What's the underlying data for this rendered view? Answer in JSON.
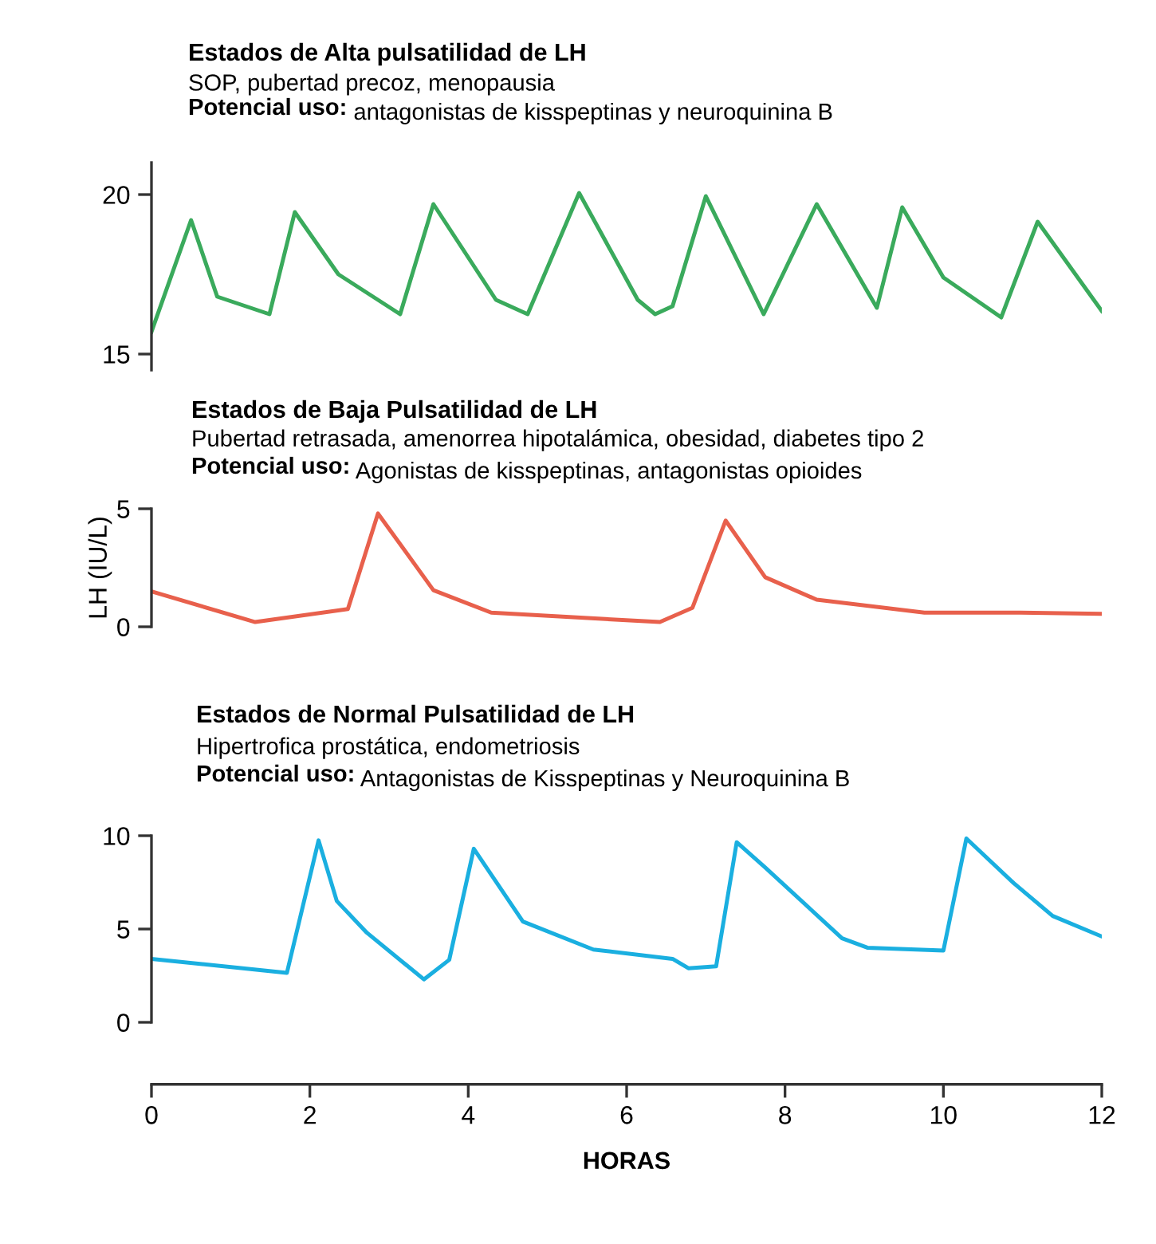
{
  "chart_data": [
    {
      "type": "line",
      "title": "Estados de Alta pulsatilidad de LH",
      "subtitle": "SOP, pubertad precoz, menopausia",
      "annotations": [
        "Potencial uso: antagonistas de kisspeptinas y neuroquinina B"
      ],
      "x": [
        0,
        0.5,
        0.83,
        1.49,
        1.81,
        2.36,
        3.14,
        3.56,
        4.35,
        4.75,
        5.4,
        6.14,
        6.36,
        6.58,
        7.0,
        7.73,
        8.4,
        9.16,
        9.48,
        10.0,
        10.73,
        11.19,
        12
      ],
      "series": [
        {
          "color": "#3aaa5c",
          "values": [
            15.7,
            19.2,
            16.8,
            16.25,
            19.45,
            17.5,
            16.25,
            19.7,
            16.7,
            16.25,
            20.05,
            16.7,
            16.25,
            16.5,
            19.95,
            16.25,
            19.7,
            16.45,
            19.6,
            17.4,
            16.15,
            19.15,
            16.35
          ]
        }
      ],
      "xlim": [
        0,
        12
      ],
      "ylim": [
        14.5,
        21
      ],
      "yticks": [
        15,
        20
      ],
      "tick_labels": "y"
    },
    {
      "type": "line",
      "title": "Estados de Baja Pulsatilidad de LH",
      "subtitle": "Pubertad retrasada, amenorrea hipotalámica, obesidad, diabetes tipo 2",
      "annotations": [
        "Potencial uso: Agonistas de kisspeptinas, antagonistas opioides"
      ],
      "x": [
        0,
        1.31,
        2.48,
        2.86,
        3.56,
        4.29,
        6.42,
        6.83,
        7.25,
        7.75,
        8.4,
        9.76,
        10.97,
        12
      ],
      "series": [
        {
          "color": "#e8604c",
          "values": [
            1.5,
            0.2,
            0.75,
            4.8,
            1.55,
            0.6,
            0.2,
            0.8,
            4.5,
            2.1,
            1.15,
            0.6,
            0.6,
            0.55
          ]
        }
      ],
      "xlim": [
        0,
        12
      ],
      "ylim": [
        0,
        5
      ],
      "yticks": [
        0,
        5
      ],
      "ylabel": "LH (IU/L)",
      "tick_labels": "y"
    },
    {
      "type": "line",
      "title": "Estados de Normal Pulsatilidad de LH",
      "subtitle": "Hipertrofica prostática, endometriosis",
      "annotations": [
        "Potencial uso: Antagonistas de Kisspeptinas y Neuroquinina B"
      ],
      "x": [
        0,
        1.71,
        2.11,
        2.34,
        2.72,
        3.44,
        3.76,
        4.07,
        4.69,
        5.58,
        6.58,
        6.78,
        7.13,
        7.39,
        7.75,
        8.72,
        9.04,
        10.0,
        10.29,
        10.89,
        11.38,
        12
      ],
      "series": [
        {
          "color": "#1aafe0",
          "values": [
            3.4,
            2.65,
            9.75,
            6.5,
            4.8,
            2.3,
            3.35,
            9.3,
            5.4,
            3.9,
            3.4,
            2.9,
            3.0,
            9.65,
            8.3,
            4.5,
            4.0,
            3.85,
            9.85,
            7.45,
            5.7,
            4.6
          ]
        }
      ],
      "xlim": [
        0,
        12
      ],
      "xticks": [
        0,
        2,
        4,
        6,
        8,
        10,
        12
      ],
      "ylim": [
        0,
        10
      ],
      "yticks": [
        0,
        5,
        10
      ],
      "xlabel": "HORAS"
    }
  ]
}
